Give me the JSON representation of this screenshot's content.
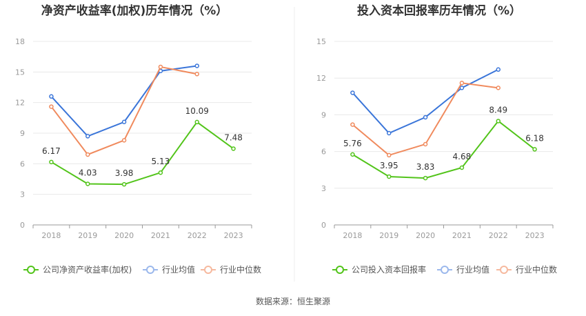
{
  "source_label": "数据来源：",
  "source_value": "恒生聚源",
  "chart_data": [
    {
      "type": "line",
      "title": "净资产收益率(加权)历年情况（%）",
      "categories": [
        "2018",
        "2019",
        "2020",
        "2021",
        "2022",
        "2023"
      ],
      "ylim": [
        0,
        18
      ],
      "yticks": [
        0,
        3,
        6,
        9,
        12,
        15,
        18
      ],
      "grid": true,
      "legend_placement": "bottom",
      "series": [
        {
          "name": "公司净资产收益率(加权)",
          "color": "#52c41a",
          "values": [
            6.17,
            4.03,
            3.98,
            5.13,
            10.09,
            7.48
          ],
          "labels": true
        },
        {
          "name": "行业均值",
          "color": "#3a75d9",
          "values": [
            12.6,
            8.7,
            10.1,
            15.1,
            15.6,
            null
          ],
          "labels": false
        },
        {
          "name": "行业中位数",
          "color": "#f08a5d",
          "values": [
            11.6,
            6.9,
            8.3,
            15.5,
            14.8,
            null
          ],
          "labels": false
        }
      ]
    },
    {
      "type": "line",
      "title": "投入资本回报率历年情况（%）",
      "categories": [
        "2018",
        "2019",
        "2020",
        "2021",
        "2022",
        "2023"
      ],
      "ylim": [
        0,
        15
      ],
      "yticks": [
        0,
        3,
        6,
        9,
        12,
        15
      ],
      "grid": true,
      "legend_placement": "bottom",
      "series": [
        {
          "name": "公司投入资本回报率",
          "color": "#52c41a",
          "values": [
            5.76,
            3.95,
            3.83,
            4.68,
            8.49,
            6.18
          ],
          "labels": true
        },
        {
          "name": "行业均值",
          "color": "#3a75d9",
          "values": [
            10.8,
            7.5,
            8.8,
            11.2,
            12.7,
            null
          ],
          "labels": false
        },
        {
          "name": "行业中位数",
          "color": "#f08a5d",
          "values": [
            8.2,
            5.7,
            6.6,
            11.6,
            11.2,
            null
          ],
          "labels": false
        }
      ]
    }
  ]
}
